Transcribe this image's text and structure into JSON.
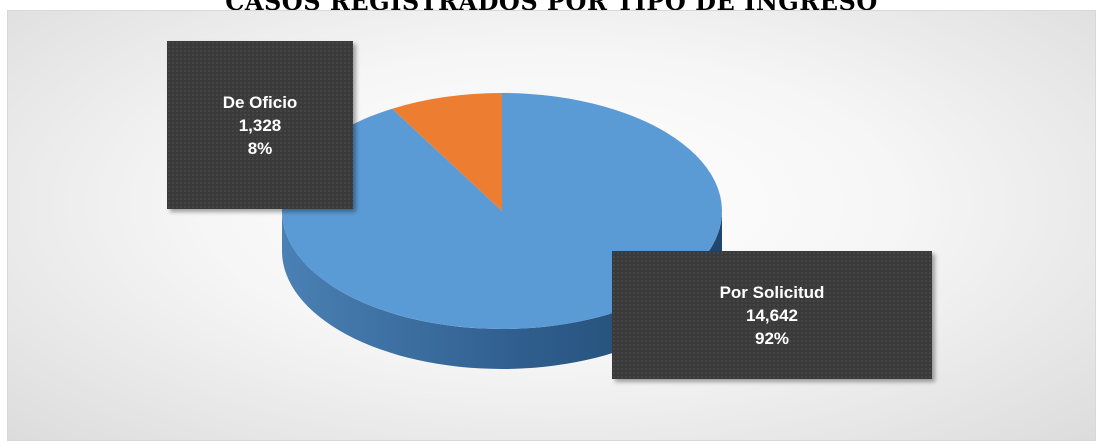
{
  "title": "CASOS REGISTRADOS POR TIPO DE INGRESO",
  "colors": {
    "por_solicitud": "#5B9BD5",
    "de_oficio": "#ED7D31",
    "label_box": "#3A3A3A",
    "label_text": "#FFFFFF"
  },
  "chart_data": {
    "type": "pie",
    "style": "3d-exploded",
    "title": "CASOS REGISTRADOS POR TIPO DE INGRESO",
    "categories": [
      "Por Solicitud",
      "De Oficio"
    ],
    "values": [
      14642,
      1328
    ],
    "percentages": [
      92,
      8
    ],
    "data_labels": [
      {
        "category": "Por Solicitud",
        "value": "14,642",
        "percent": "92%"
      },
      {
        "category": "De Oficio",
        "value": "1,328",
        "percent": "8%"
      }
    ],
    "legend": "none"
  }
}
